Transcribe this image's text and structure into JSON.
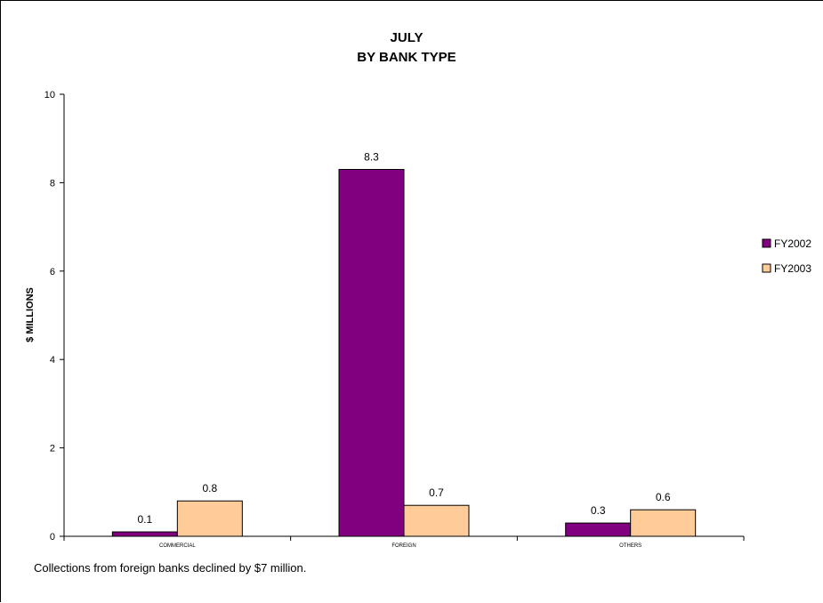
{
  "chart_data": {
    "type": "bar",
    "title_lines": [
      "JULY",
      "BY BANK TYPE"
    ],
    "categories": [
      "COMMERCIAL",
      "FOREIGN",
      "OTHERS"
    ],
    "series": [
      {
        "name": "FY2002",
        "values": [
          0.1,
          8.3,
          0.3
        ],
        "labels": [
          "0.1",
          "8.3",
          "0.3"
        ],
        "color": "#800080"
      },
      {
        "name": "FY2003",
        "values": [
          0.8,
          0.7,
          0.6
        ],
        "labels": [
          "0.8",
          "0.7",
          "0.6"
        ],
        "color": "#FFCC99"
      }
    ],
    "ylabel": "$ MILLIONS",
    "xlabel": "",
    "ylim": [
      0,
      10
    ],
    "yticks": [
      "0",
      "2",
      "4",
      "6",
      "8",
      "10"
    ],
    "grid": false,
    "legend_position": "right"
  },
  "caption": "Collections from foreign banks declined by $7 million."
}
